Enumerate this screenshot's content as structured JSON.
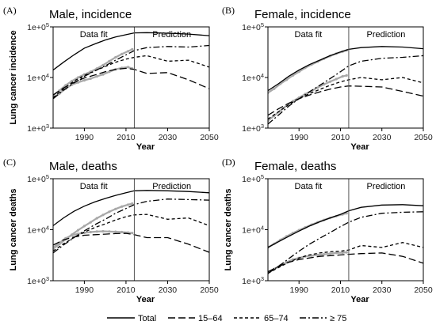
{
  "legend": [
    {
      "name": "Total",
      "dash": "solid"
    },
    {
      "name": "15–64",
      "dash": "longdash"
    },
    {
      "name": "65–74",
      "dash": "dash"
    },
    {
      "name": "≥ 75",
      "dash": "dashdot"
    }
  ],
  "colors": {
    "line": "#000000",
    "observed": "#a8a8a8",
    "divider": "#555555"
  },
  "chart_data": [
    {
      "type": "line",
      "letter": "(A)",
      "title": "Male, incidence",
      "ylabel": "Lung cancer incidence",
      "xlabel": "Year",
      "xlim": [
        1975,
        2050
      ],
      "ylim_log": [
        1000,
        100000
      ],
      "y_scale": "log",
      "xticks": [
        1990,
        2010,
        2030,
        2050
      ],
      "yticks": [
        {
          "v": 1000,
          "base": "1e+0",
          "exp": "3"
        },
        {
          "v": 10000,
          "base": "1e+0",
          "exp": "4"
        },
        {
          "v": 100000,
          "base": "1e+0",
          "exp": "5"
        }
      ],
      "split_year": 2014,
      "fit_label": "Data fit",
      "pred_label": "Prediction",
      "series": [
        {
          "name": "Total",
          "x": [
            1975,
            1980,
            1985,
            1990,
            1995,
            2000,
            2005,
            2010,
            2014,
            2020,
            2030,
            2040,
            2050
          ],
          "y": [
            14000,
            20000,
            28000,
            38000,
            46000,
            55000,
            63000,
            70000,
            76000,
            77000,
            75000,
            72000,
            67000
          ]
        },
        {
          "name": "15–64",
          "x": [
            1975,
            1980,
            1985,
            1990,
            1995,
            2000,
            2005,
            2010,
            2014,
            2020,
            2030,
            2040,
            2050
          ],
          "y": [
            4500,
            6200,
            8000,
            9800,
            11200,
            13000,
            14500,
            15200,
            14500,
            12000,
            12500,
            9000,
            6000
          ]
        },
        {
          "name": "65–74",
          "x": [
            1975,
            1980,
            1985,
            1990,
            1995,
            2000,
            2005,
            2010,
            2014,
            2020,
            2030,
            2040,
            2050
          ],
          "y": [
            4000,
            6000,
            8500,
            11000,
            13500,
            16500,
            20000,
            23000,
            25000,
            27000,
            21000,
            22000,
            16000
          ]
        },
        {
          "name": "≥ 75",
          "x": [
            1975,
            1980,
            1985,
            1990,
            1995,
            2000,
            2005,
            2010,
            2014,
            2020,
            2030,
            2040,
            2050
          ],
          "y": [
            3800,
            5600,
            7800,
            10500,
            13500,
            17000,
            22000,
            28000,
            34000,
            39000,
            41000,
            40000,
            43000
          ]
        }
      ],
      "observed": [
        {
          "x": [
            1975,
            1978,
            1981,
            1984,
            1987,
            1990,
            1993,
            1996,
            1999,
            2002,
            2005,
            2008,
            2011,
            2013
          ],
          "y": [
            4000,
            4800,
            6000,
            7200,
            8000,
            8800,
            9500,
            10500,
            11500,
            13000,
            14500,
            15500,
            16000,
            15000
          ]
        },
        {
          "x": [
            1975,
            1978,
            1981,
            1984,
            1987,
            1990,
            1993,
            1996,
            1999,
            2002,
            2005,
            2008,
            2011,
            2013
          ],
          "y": [
            4500,
            5500,
            7000,
            8500,
            10000,
            11500,
            13000,
            15000,
            17500,
            21000,
            25000,
            29000,
            33000,
            36000
          ]
        }
      ]
    },
    {
      "type": "line",
      "letter": "(B)",
      "title": "Female, incidence",
      "ylabel": "",
      "xlabel": "Year",
      "xlim": [
        1975,
        2050
      ],
      "ylim_log": [
        1000,
        100000
      ],
      "y_scale": "log",
      "xticks": [
        1990,
        2010,
        2030,
        2050
      ],
      "yticks": [
        {
          "v": 1000,
          "base": "1e+0",
          "exp": "3"
        },
        {
          "v": 10000,
          "base": "1e+0",
          "exp": "4"
        },
        {
          "v": 100000,
          "base": "1e+0",
          "exp": "5"
        }
      ],
      "split_year": 2014,
      "fit_label": "Data fit",
      "pred_label": "Prediction",
      "series": [
        {
          "name": "Total",
          "x": [
            1975,
            1980,
            1985,
            1990,
            1995,
            2000,
            2005,
            2010,
            2014,
            2020,
            2030,
            2040,
            2050
          ],
          "y": [
            5500,
            7500,
            10500,
            14000,
            18000,
            22000,
            27000,
            32000,
            36000,
            39000,
            41000,
            40000,
            37000
          ]
        },
        {
          "name": "15–64",
          "x": [
            1975,
            1980,
            1985,
            1990,
            1995,
            2000,
            2005,
            2010,
            2014,
            2020,
            2030,
            2040,
            2050
          ],
          "y": [
            1800,
            2400,
            3100,
            3800,
            4500,
            5200,
            5900,
            6500,
            6800,
            6700,
            6500,
            5300,
            4300
          ]
        },
        {
          "name": "65–74",
          "x": [
            1975,
            1980,
            1985,
            1990,
            1995,
            2000,
            2005,
            2010,
            2014,
            2020,
            2030,
            2040,
            2050
          ],
          "y": [
            1500,
            2100,
            2900,
            3800,
            4800,
            5800,
            7000,
            8200,
            9000,
            10000,
            9000,
            10000,
            7800
          ]
        },
        {
          "name": "≥ 75",
          "x": [
            1975,
            1980,
            1985,
            1990,
            1995,
            2000,
            2005,
            2010,
            2014,
            2020,
            2030,
            2040,
            2050
          ],
          "y": [
            1200,
            1800,
            2700,
            3800,
            5200,
            7000,
            9500,
            13000,
            17000,
            21000,
            24000,
            25000,
            27000
          ]
        }
      ],
      "observed": [
        {
          "x": [
            1975,
            1978,
            1981,
            1984,
            1987,
            1990,
            1993,
            1996,
            1999,
            2002,
            2005,
            2008,
            2011,
            2013
          ],
          "y": [
            5000,
            6000,
            7500,
            9000,
            11000,
            13000,
            15500,
            18000,
            20500,
            23500,
            26500,
            29500,
            32500,
            34500
          ]
        },
        {
          "x": [
            1975,
            1978,
            1981,
            1984,
            1987,
            1990,
            1993,
            1996,
            1999,
            2002,
            2005,
            2008,
            2011,
            2013
          ],
          "y": [
            1400,
            1750,
            2200,
            2800,
            3400,
            4000,
            4700,
            5400,
            6300,
            7300,
            8300,
            9300,
            10500,
            11000
          ]
        }
      ]
    },
    {
      "type": "line",
      "letter": "(C)",
      "title": "Male, deaths",
      "ylabel": "Lung cancer deaths",
      "xlabel": "Year",
      "xlim": [
        1975,
        2050
      ],
      "ylim_log": [
        1000,
        100000
      ],
      "y_scale": "log",
      "xticks": [
        1990,
        2010,
        2030,
        2050
      ],
      "yticks": [
        {
          "v": 1000,
          "base": "1e+0",
          "exp": "3"
        },
        {
          "v": 10000,
          "base": "1e+0",
          "exp": "4"
        },
        {
          "v": 100000,
          "base": "1e+0",
          "exp": "5"
        }
      ],
      "split_year": 2014,
      "fit_label": "Data fit",
      "pred_label": "Prediction",
      "series": [
        {
          "name": "Total",
          "x": [
            1975,
            1980,
            1985,
            1990,
            1995,
            2000,
            2005,
            2010,
            2014,
            2020,
            2030,
            2040,
            2050
          ],
          "y": [
            12000,
            17000,
            23000,
            29000,
            35000,
            41000,
            47000,
            53000,
            58000,
            59000,
            58000,
            56000,
            53000
          ]
        },
        {
          "name": "15–64",
          "x": [
            1975,
            1980,
            1985,
            1990,
            1995,
            2000,
            2005,
            2010,
            2014,
            2020,
            2030,
            2040,
            2050
          ],
          "y": [
            5000,
            6300,
            7200,
            7800,
            8000,
            8200,
            8400,
            8500,
            8000,
            7000,
            7000,
            5200,
            3600
          ]
        },
        {
          "name": "65–74",
          "x": [
            1975,
            1980,
            1985,
            1990,
            1995,
            2000,
            2005,
            2010,
            2014,
            2020,
            2030,
            2040,
            2050
          ],
          "y": [
            3800,
            5300,
            7000,
            9000,
            11000,
            13000,
            15500,
            18000,
            19500,
            20000,
            16000,
            17000,
            12000
          ]
        },
        {
          "name": "≥ 75",
          "x": [
            1975,
            1980,
            1985,
            1990,
            1995,
            2000,
            2005,
            2010,
            2014,
            2020,
            2030,
            2040,
            2050
          ],
          "y": [
            3500,
            5000,
            7000,
            9500,
            12500,
            16000,
            21000,
            26000,
            31000,
            36000,
            40000,
            39000,
            38000
          ]
        }
      ],
      "observed": [
        {
          "x": [
            1975,
            1978,
            1981,
            1984,
            1987,
            1990,
            1993,
            1996,
            1999,
            2002,
            2005,
            2008,
            2011,
            2013
          ],
          "y": [
            4500,
            5500,
            6800,
            7800,
            8300,
            8700,
            9000,
            9200,
            9300,
            9200,
            9100,
            9000,
            8800,
            8600
          ]
        },
        {
          "x": [
            1975,
            1978,
            1981,
            1984,
            1987,
            1990,
            1993,
            1996,
            1999,
            2002,
            2005,
            2008,
            2011,
            2013
          ],
          "y": [
            4200,
            5200,
            6500,
            8000,
            9800,
            11800,
            14000,
            16800,
            19500,
            22500,
            25500,
            28500,
            31000,
            32500
          ]
        }
      ]
    },
    {
      "type": "line",
      "letter": "(D)",
      "title": "Female, deaths",
      "ylabel": "Lung cancer deaths",
      "xlabel": "Year",
      "xlim": [
        1975,
        2050
      ],
      "ylim_log": [
        1000,
        100000
      ],
      "y_scale": "log",
      "xticks": [
        1990,
        2010,
        2030,
        2050
      ],
      "yticks": [
        {
          "v": 1000,
          "base": "1e+0",
          "exp": "3"
        },
        {
          "v": 10000,
          "base": "1e+0",
          "exp": "4"
        },
        {
          "v": 100000,
          "base": "1e+0",
          "exp": "5"
        }
      ],
      "split_year": 2014,
      "fit_label": "Data fit",
      "pred_label": "Prediction",
      "series": [
        {
          "name": "Total",
          "x": [
            1975,
            1980,
            1985,
            1990,
            1995,
            2000,
            2005,
            2010,
            2014,
            2020,
            2030,
            2040,
            2050
          ],
          "y": [
            4500,
            5800,
            7400,
            9400,
            11800,
            14300,
            17000,
            20000,
            23500,
            27500,
            30500,
            31000,
            29500
          ]
        },
        {
          "name": "15–64",
          "x": [
            1975,
            1980,
            1985,
            1990,
            1995,
            2000,
            2005,
            2010,
            2014,
            2020,
            2030,
            2040,
            2050
          ],
          "y": [
            1500,
            1900,
            2300,
            2600,
            2800,
            3000,
            3100,
            3200,
            3300,
            3400,
            3500,
            3000,
            2200
          ]
        },
        {
          "name": "65–74",
          "x": [
            1975,
            1980,
            1985,
            1990,
            1995,
            2000,
            2005,
            2010,
            2014,
            2020,
            2030,
            2040,
            2050
          ],
          "y": [
            1400,
            1800,
            2300,
            2800,
            3200,
            3500,
            3700,
            3800,
            4000,
            4900,
            4500,
            5600,
            4500
          ]
        },
        {
          "name": "≥ 75",
          "x": [
            1975,
            1980,
            1985,
            1990,
            1995,
            2000,
            2005,
            2010,
            2014,
            2020,
            2030,
            2040,
            2050
          ],
          "y": [
            1400,
            1900,
            2700,
            3800,
            5200,
            6800,
            8800,
            11500,
            14000,
            17500,
            21000,
            22000,
            22500
          ]
        }
      ],
      "observed": [
        {
          "x": [
            1975,
            1978,
            1981,
            1984,
            1987,
            1990,
            1993,
            1996,
            1999,
            2002,
            2005,
            2008,
            2011,
            2013
          ],
          "y": [
            4500,
            5300,
            6300,
            7400,
            8600,
            9800,
            11100,
            12500,
            14000,
            15500,
            17000,
            18500,
            20000,
            21000
          ]
        },
        {
          "x": [
            1975,
            1978,
            1981,
            1984,
            1987,
            1990,
            1993,
            1996,
            1999,
            2002,
            2005,
            2008,
            2011,
            2013
          ],
          "y": [
            1400,
            1700,
            2000,
            2300,
            2600,
            2800,
            3000,
            3100,
            3200,
            3300,
            3400,
            3500,
            3550,
            3600
          ]
        }
      ]
    }
  ]
}
